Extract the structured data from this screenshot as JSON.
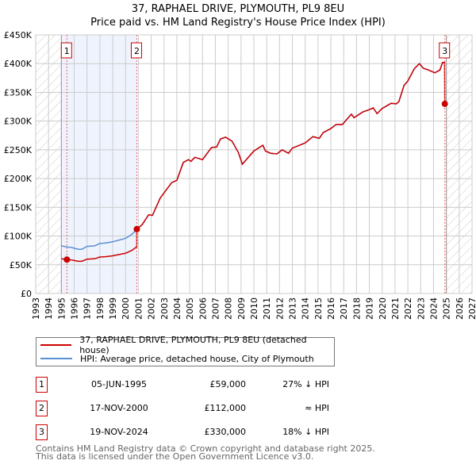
{
  "chart_data": {
    "type": "line",
    "title": "37, RAPHAEL DRIVE, PLYMOUTH, PL9 8EU",
    "subtitle": "Price paid vs. HM Land Registry's House Price Index (HPI)",
    "xlim": [
      1993,
      2027
    ],
    "ylim": [
      0,
      450000
    ],
    "y_ticks": [
      0,
      50000,
      100000,
      150000,
      200000,
      250000,
      300000,
      350000,
      400000,
      450000
    ],
    "y_tick_labels": [
      "£0",
      "£50K",
      "£100K",
      "£150K",
      "£200K",
      "£250K",
      "£300K",
      "£350K",
      "£400K",
      "£450K"
    ],
    "x_ticks": [
      1993,
      1994,
      1995,
      1996,
      1997,
      1998,
      1999,
      2000,
      2001,
      2002,
      2003,
      2004,
      2005,
      2006,
      2007,
      2008,
      2009,
      2010,
      2011,
      2012,
      2013,
      2014,
      2015,
      2016,
      2017,
      2018,
      2019,
      2020,
      2021,
      2022,
      2023,
      2024,
      2025,
      2026,
      2027
    ],
    "grid": true,
    "data_range": [
      1995,
      2025
    ],
    "colors": {
      "property": "#cc0000",
      "hpi": "#5b8fd6",
      "shade": "#eef3fd",
      "grid": "#cccccc"
    },
    "hpi_series": [
      [
        1995.0,
        83000
      ],
      [
        1995.4,
        81000
      ],
      [
        1995.8,
        80000
      ],
      [
        1996.3,
        77000
      ],
      [
        1996.6,
        77000
      ],
      [
        1997.0,
        82000
      ],
      [
        1997.6,
        83000
      ],
      [
        1998.0,
        87000
      ],
      [
        1998.5,
        88000
      ],
      [
        1999.0,
        90000
      ],
      [
        1999.5,
        93000
      ],
      [
        2000.0,
        96000
      ],
      [
        2000.5,
        103000
      ],
      [
        2000.88,
        112000
      ],
      [
        2001.3,
        120000
      ],
      [
        2001.8,
        137000
      ],
      [
        2002.1,
        136000
      ],
      [
        2002.7,
        166000
      ],
      [
        2003.0,
        175000
      ],
      [
        2003.6,
        193000
      ],
      [
        2004.0,
        197000
      ],
      [
        2004.5,
        228000
      ],
      [
        2004.9,
        233000
      ],
      [
        2005.1,
        230000
      ],
      [
        2005.4,
        237000
      ],
      [
        2006.0,
        233000
      ],
      [
        2006.5,
        248000
      ],
      [
        2006.7,
        254000
      ],
      [
        2007.1,
        255000
      ],
      [
        2007.4,
        269000
      ],
      [
        2007.8,
        272000
      ],
      [
        2008.3,
        265000
      ],
      [
        2008.8,
        245000
      ],
      [
        2009.1,
        225000
      ],
      [
        2010.0,
        248000
      ],
      [
        2010.7,
        258000
      ],
      [
        2010.9,
        248000
      ],
      [
        2011.3,
        244000
      ],
      [
        2011.8,
        243000
      ],
      [
        2012.2,
        250000
      ],
      [
        2012.7,
        244000
      ],
      [
        2013.0,
        253000
      ],
      [
        2014.0,
        262000
      ],
      [
        2014.6,
        273000
      ],
      [
        2015.1,
        270000
      ],
      [
        2015.4,
        280000
      ],
      [
        2016.0,
        287000
      ],
      [
        2016.4,
        294000
      ],
      [
        2016.9,
        294000
      ],
      [
        2017.2,
        302000
      ],
      [
        2017.6,
        312000
      ],
      [
        2017.8,
        306000
      ],
      [
        2018.5,
        316000
      ],
      [
        2019.0,
        320000
      ],
      [
        2019.3,
        323000
      ],
      [
        2019.6,
        313000
      ],
      [
        2020.0,
        322000
      ],
      [
        2020.7,
        331000
      ],
      [
        2021.1,
        330000
      ],
      [
        2021.3,
        334000
      ],
      [
        2021.7,
        362000
      ],
      [
        2022.0,
        370000
      ],
      [
        2022.5,
        391000
      ],
      [
        2022.9,
        400000
      ],
      [
        2023.2,
        392000
      ],
      [
        2023.6,
        389000
      ],
      [
        2024.1,
        384000
      ],
      [
        2024.5,
        389000
      ],
      [
        2024.7,
        402000
      ],
      [
        2024.88,
        402000
      ]
    ],
    "sales": [
      {
        "label": "1",
        "date": "05-JUN-1995",
        "year": 1995.43,
        "price": 59000,
        "price_label": "£59,000",
        "hpi_note": "27% ↓ HPI"
      },
      {
        "label": "2",
        "date": "17-NOV-2000",
        "year": 2000.88,
        "price": 112000,
        "price_label": "£112,000",
        "hpi_note": "≈ HPI"
      },
      {
        "label": "3",
        "date": "19-NOV-2024",
        "year": 2024.88,
        "price": 330000,
        "price_label": "£330,000",
        "hpi_note": "18% ↓ HPI"
      }
    ],
    "legend": [
      {
        "label": "37, RAPHAEL DRIVE, PLYMOUTH, PL9 8EU (detached house)"
      },
      {
        "label": "HPI: Average price, detached house, City of Plymouth"
      }
    ]
  },
  "footer": [
    "Contains HM Land Registry data © Crown copyright and database right 2025.",
    "This data is licensed under the Open Government Licence v3.0."
  ]
}
